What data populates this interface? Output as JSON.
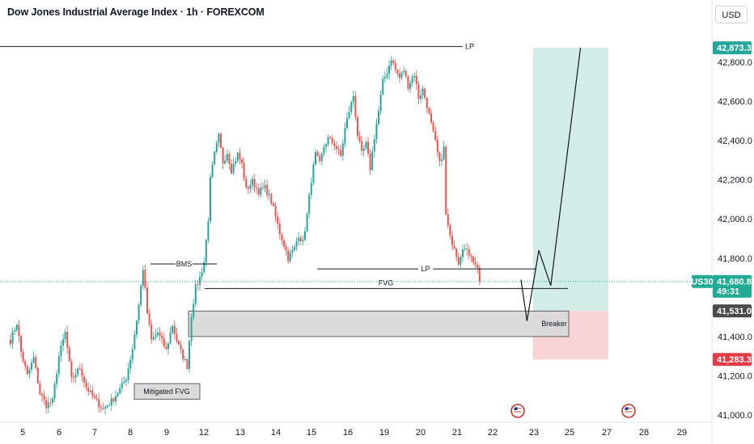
{
  "header": {
    "title": "Dow Jones Industrial Average Index · 1h · FOREXCOM",
    "currency": "USD"
  },
  "colors": {
    "up": "#26a69a",
    "down": "#ef5350",
    "profit_zone": "#d2ece7",
    "loss_zone": "#f9d3d6",
    "box": "#d9d9d9",
    "box_border": "#606060",
    "line": "#131722",
    "target_tag": "#26a69a",
    "price_tag": "#22ab94",
    "entry_tag": "#4a4a4a",
    "stop_tag": "#e23b48"
  },
  "chart_data": {
    "type": "candlestick",
    "symbol": "US30",
    "y_ticks": [
      "42,800.0",
      "42,600.0",
      "42,400.0",
      "42,200.0",
      "42,000.0",
      "41,800.0",
      "41,400.0",
      "41,200.0",
      "41,000.0"
    ],
    "x_ticks": [
      "5",
      "6",
      "7",
      "8",
      "9",
      "12",
      "13",
      "14",
      "15",
      "16",
      "19",
      "20",
      "21",
      "22",
      "23",
      "25",
      "27",
      "28",
      "29"
    ],
    "ylim": [
      40960,
      42920
    ],
    "price_path": [
      [
        0,
        41380
      ],
      [
        3,
        41470
      ],
      [
        5,
        41320
      ],
      [
        8,
        41200
      ],
      [
        11,
        41290
      ],
      [
        14,
        41110
      ],
      [
        17,
        41050
      ],
      [
        20,
        41070
      ],
      [
        23,
        41300
      ],
      [
        26,
        41420
      ],
      [
        29,
        41180
      ],
      [
        33,
        41240
      ],
      [
        36,
        41140
      ],
      [
        40,
        41080
      ],
      [
        44,
        41030
      ],
      [
        48,
        41070
      ],
      [
        52,
        41130
      ],
      [
        55,
        41190
      ],
      [
        58,
        41340
      ],
      [
        61,
        41560
      ],
      [
        63,
        41750
      ],
      [
        65,
        41520
      ],
      [
        67,
        41380
      ],
      [
        70,
        41420
      ],
      [
        74,
        41330
      ],
      [
        77,
        41460
      ],
      [
        79,
        41380
      ],
      [
        81,
        41320
      ],
      [
        84,
        41250
      ],
      [
        86,
        41510
      ],
      [
        88,
        41650
      ],
      [
        90,
        41700
      ],
      [
        92,
        41780
      ],
      [
        94,
        42000
      ],
      [
        95,
        42200
      ],
      [
        97,
        42330
      ],
      [
        99,
        42420
      ],
      [
        101,
        42290
      ],
      [
        103,
        42340
      ],
      [
        105,
        42250
      ],
      [
        108,
        42330
      ],
      [
        110,
        42280
      ],
      [
        112,
        42150
      ],
      [
        115,
        42190
      ],
      [
        118,
        42140
      ],
      [
        121,
        42160
      ],
      [
        124,
        42090
      ],
      [
        126,
        42010
      ],
      [
        128,
        41930
      ],
      [
        130,
        41870
      ],
      [
        132,
        41800
      ],
      [
        133,
        41820
      ],
      [
        135,
        41850
      ],
      [
        137,
        41920
      ],
      [
        139,
        41880
      ],
      [
        141,
        42020
      ],
      [
        143,
        42200
      ],
      [
        145,
        42330
      ],
      [
        147,
        42280
      ],
      [
        149,
        42370
      ],
      [
        151,
        42410
      ],
      [
        154,
        42380
      ],
      [
        157,
        42320
      ],
      [
        159,
        42460
      ],
      [
        161,
        42550
      ],
      [
        163,
        42630
      ],
      [
        165,
        42430
      ],
      [
        167,
        42330
      ],
      [
        169,
        42380
      ],
      [
        171,
        42260
      ],
      [
        173,
        42420
      ],
      [
        175,
        42550
      ],
      [
        177,
        42700
      ],
      [
        179,
        42750
      ],
      [
        181,
        42820
      ],
      [
        183,
        42760
      ],
      [
        185,
        42720
      ],
      [
        187,
        42760
      ],
      [
        189,
        42680
      ],
      [
        192,
        42740
      ],
      [
        194,
        42620
      ],
      [
        196,
        42660
      ],
      [
        198,
        42580
      ],
      [
        200,
        42480
      ],
      [
        202,
        42390
      ],
      [
        204,
        42280
      ],
      [
        206,
        42360
      ],
      [
        207,
        42020
      ],
      [
        209,
        41900
      ],
      [
        211,
        41860
      ],
      [
        213,
        41780
      ],
      [
        215,
        41860
      ],
      [
        217,
        41830
      ],
      [
        219,
        41820
      ],
      [
        221,
        41760
      ],
      [
        222,
        41760
      ],
      [
        223,
        41680
      ]
    ],
    "trade_projection": {
      "path": [
        [
          41690,
          0
        ],
        [
          41480,
          1.5
        ],
        [
          41840,
          4.5
        ],
        [
          41660,
          7.5
        ],
        [
          42873.3,
          15
        ]
      ],
      "target": "42,873.3",
      "entry": "41,531.0",
      "stop": "41,283.3"
    },
    "annotations": [
      {
        "label": "LP",
        "price": 42880,
        "kind": "liquidity"
      },
      {
        "label": "BMS",
        "price": 41770,
        "kind": "break"
      },
      {
        "label": "LP",
        "price": 41745,
        "kind": "liquidity"
      },
      {
        "label": "FVG",
        "price": 41645,
        "kind": "fvg"
      },
      {
        "label": "Breaker",
        "price_top": 41530,
        "price_bottom": 41400,
        "kind": "zone"
      },
      {
        "label": "Mitigated FVG",
        "price_top": 41160,
        "price_bottom": 41080,
        "kind": "zone"
      }
    ],
    "price_tags": [
      {
        "value": "42,873.3",
        "role": "target"
      },
      {
        "value": "41,680.8",
        "sub": "49:31",
        "role": "current"
      },
      {
        "value": "41,531.0",
        "role": "entry"
      },
      {
        "value": "41,283.3",
        "role": "stop"
      }
    ]
  }
}
